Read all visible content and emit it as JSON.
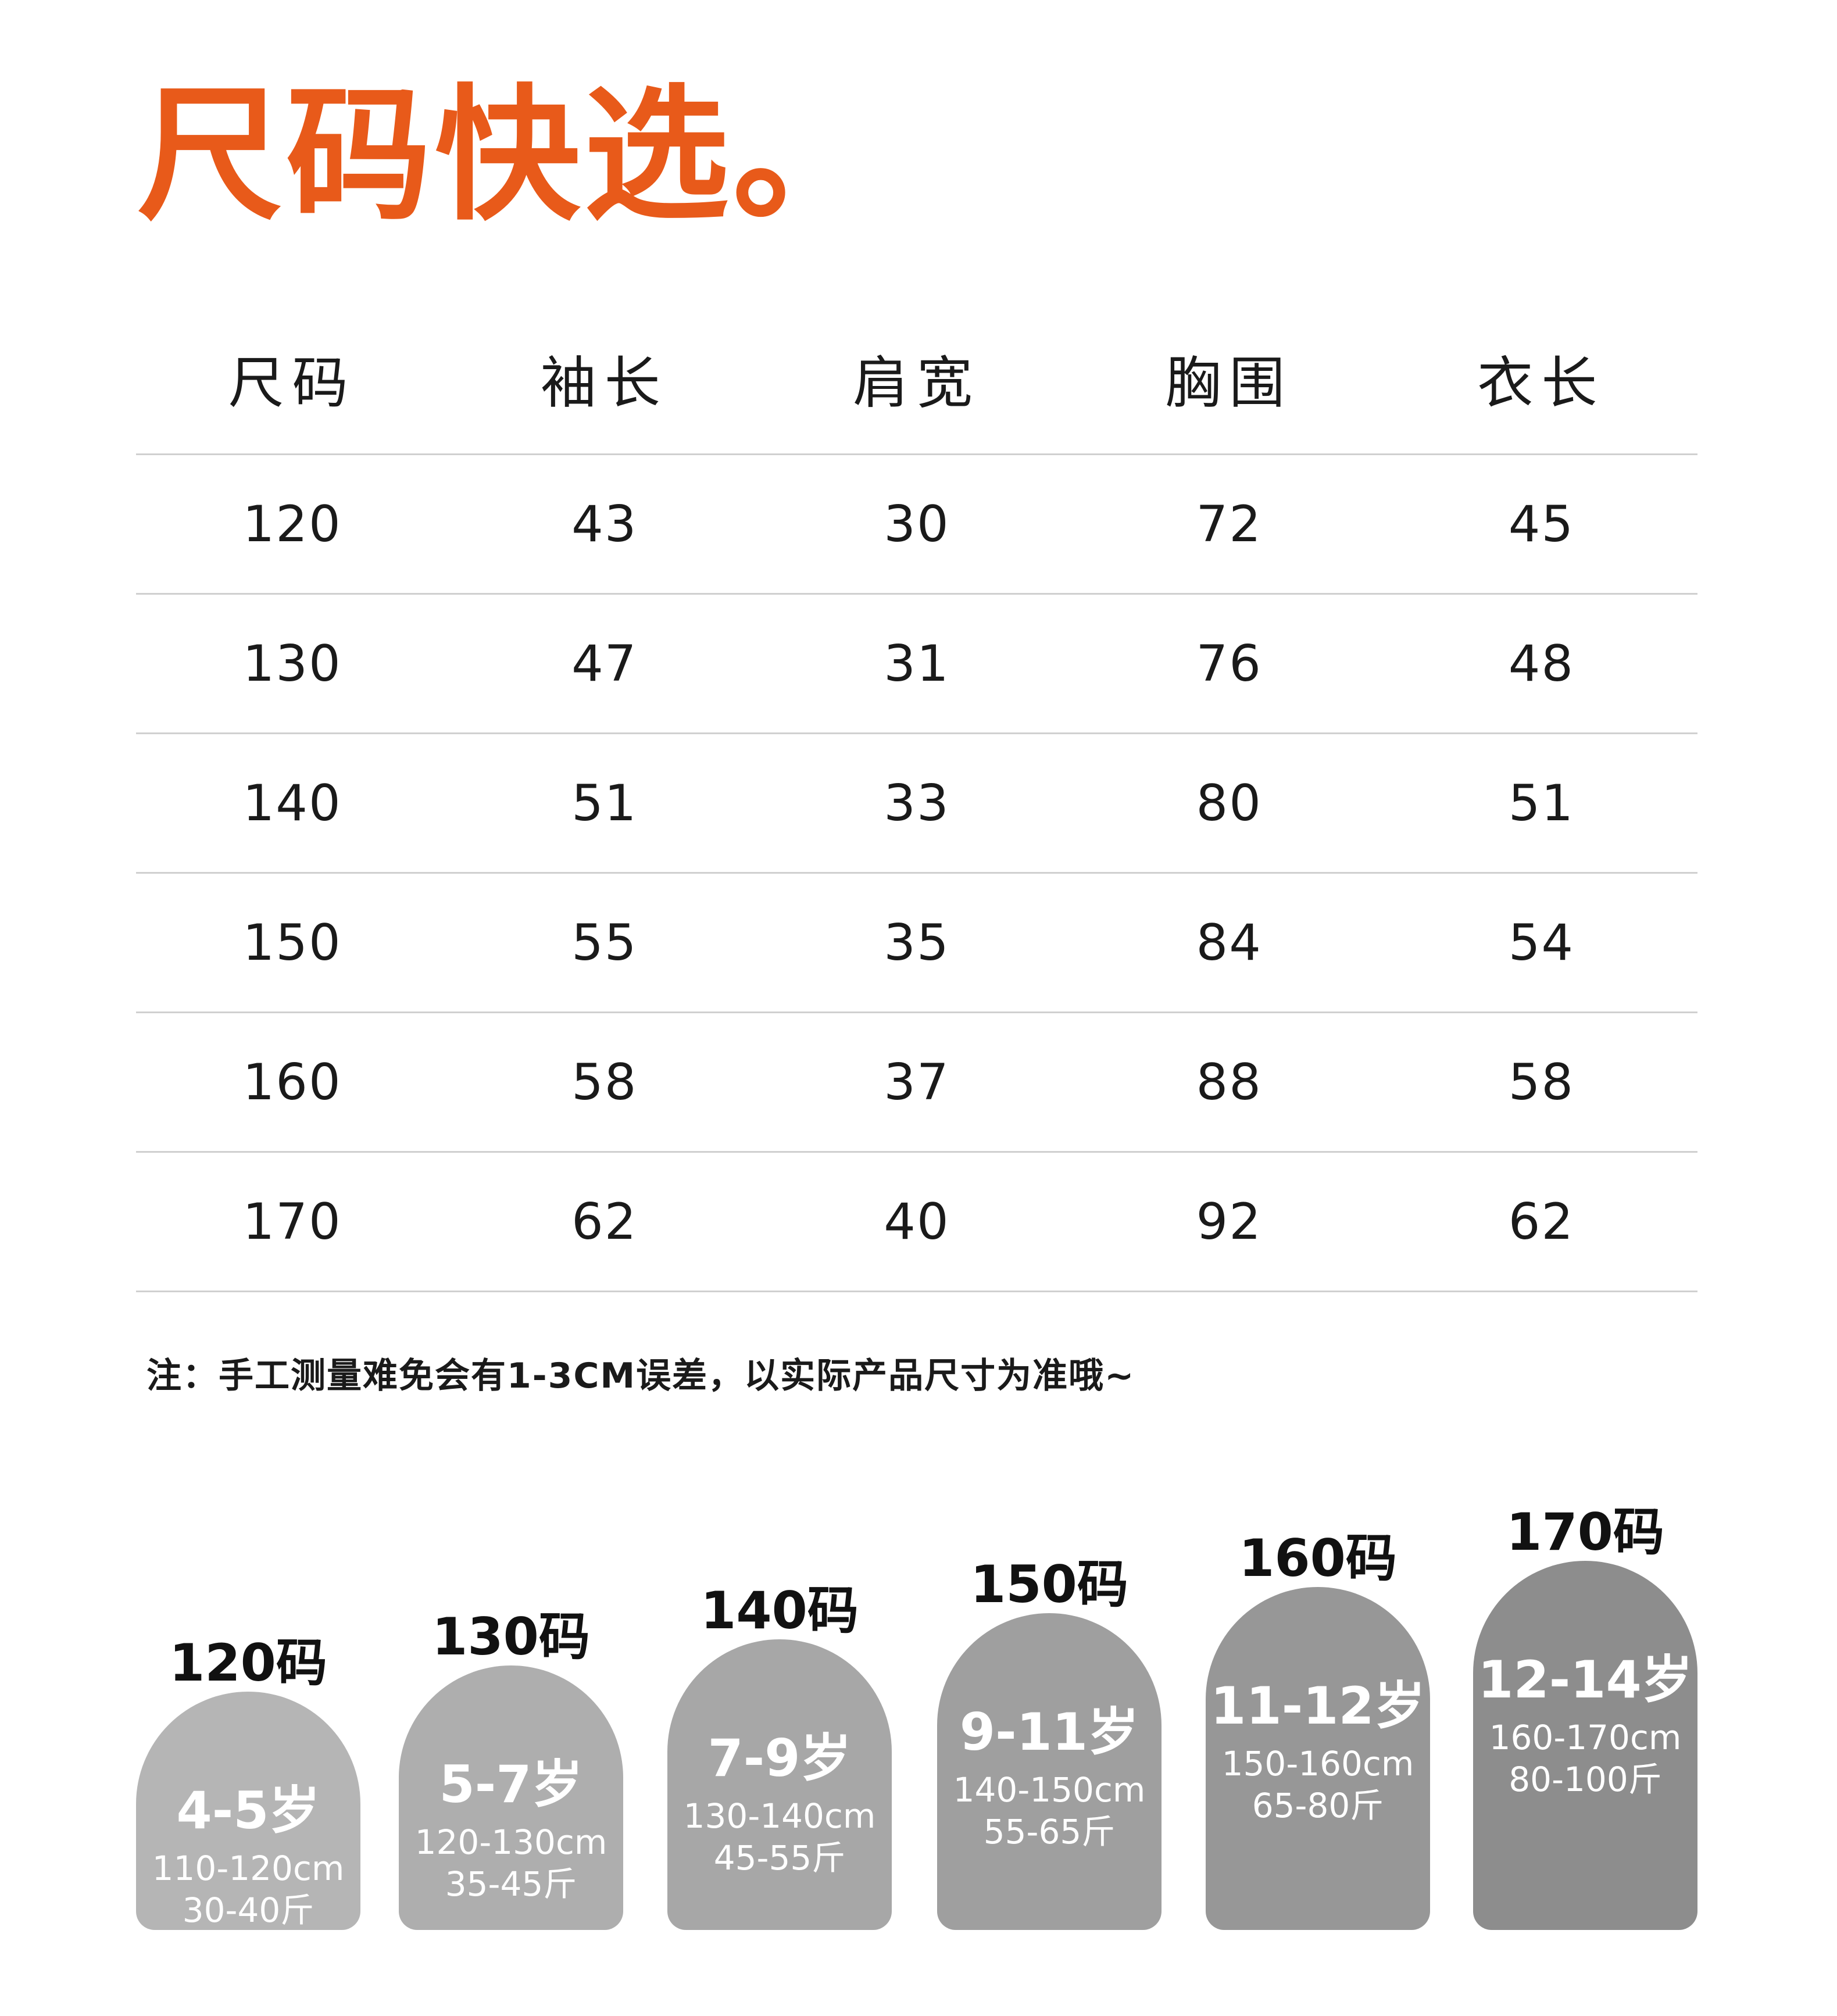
{
  "title": "尺码快选。",
  "table": {
    "headers": [
      "尺码",
      "袖长",
      "肩宽",
      "胸围",
      "衣长"
    ],
    "rows": [
      [
        "120",
        "43",
        "30",
        "72",
        "45"
      ],
      [
        "130",
        "47",
        "31",
        "76",
        "48"
      ],
      [
        "140",
        "51",
        "33",
        "80",
        "51"
      ],
      [
        "150",
        "55",
        "35",
        "84",
        "54"
      ],
      [
        "160",
        "58",
        "37",
        "88",
        "58"
      ],
      [
        "170",
        "62",
        "40",
        "92",
        "62"
      ]
    ]
  },
  "note": "注：手工测量难免会有1-3CM误差，以实际产品尺寸为准哦~",
  "cards": [
    {
      "size": "120码",
      "age": "4-5岁",
      "height": "110-120cm",
      "weight": "30-40斤",
      "color": "#b5b5b5"
    },
    {
      "size": "130码",
      "age": "5-7岁",
      "height": "120-130cm",
      "weight": "35-45斤",
      "color": "#aeaeae"
    },
    {
      "size": "140码",
      "age": "7-9岁",
      "height": "130-140cm",
      "weight": "45-55斤",
      "color": "#a7a7a7"
    },
    {
      "size": "150码",
      "age": "9-11岁",
      "height": "140-150cm",
      "weight": "55-65斤",
      "color": "#9f9f9f"
    },
    {
      "size": "160码",
      "age": "11-12岁",
      "height": "150-160cm",
      "weight": "65-80斤",
      "color": "#979797"
    },
    {
      "size": "170码",
      "age": "12-14岁",
      "height": "160-170cm",
      "weight": "80-100斤",
      "color": "#8d8d8d"
    }
  ]
}
